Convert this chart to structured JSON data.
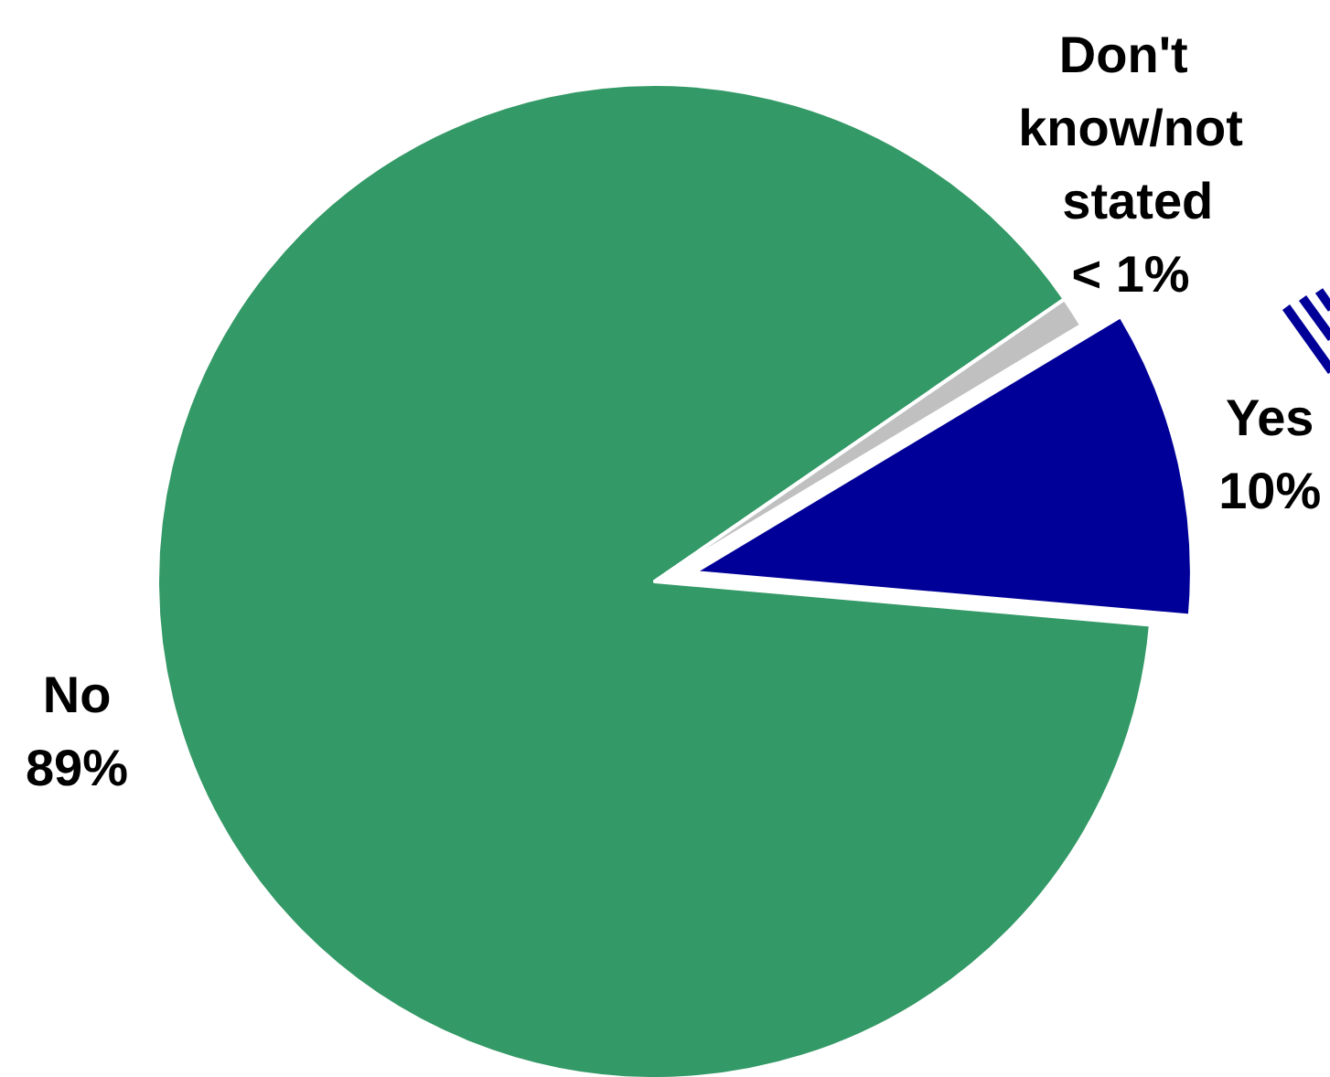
{
  "chart_data": {
    "type": "pie",
    "categories": [
      "Yes",
      "No",
      "Don't know/not stated"
    ],
    "values": [
      10,
      89,
      1
    ],
    "colors": [
      "#000099",
      "#339966",
      "#c0c0c0"
    ],
    "value_labels": [
      "10%",
      "89%",
      "< 1%"
    ]
  }
}
